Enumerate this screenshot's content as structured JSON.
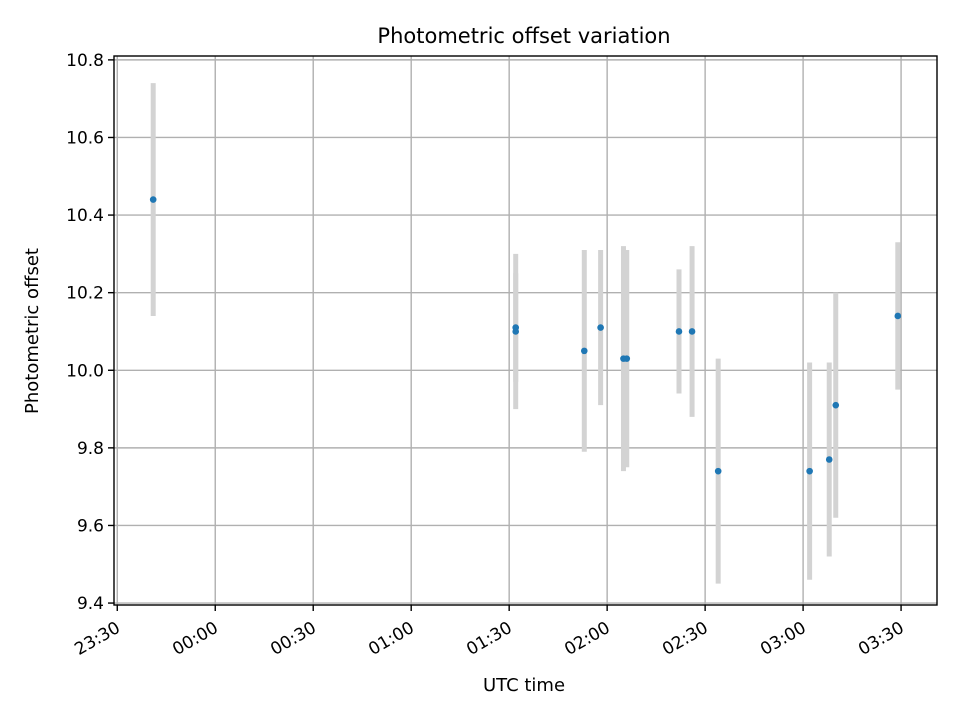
{
  "chart_data": {
    "type": "scatter",
    "title": "Photometric offset variation",
    "xlabel": "UTC time",
    "ylabel": "Photometric offset",
    "xlim": [
      "23:29",
      "03:41"
    ],
    "ylim": [
      9.395,
      10.81
    ],
    "x_ticks": [
      "23:30",
      "00:00",
      "00:30",
      "01:00",
      "01:30",
      "02:00",
      "02:30",
      "03:00",
      "03:30"
    ],
    "y_ticks": [
      9.4,
      9.6,
      9.8,
      10.0,
      10.2,
      10.4,
      10.6,
      10.8
    ],
    "y_tick_labels": [
      "9.4",
      "9.6",
      "9.8",
      "10.0",
      "10.2",
      "10.4",
      "10.6",
      "10.8"
    ],
    "grid": true,
    "colors": {
      "points": "#1f77b4",
      "errorbars": "#d3d3d3"
    },
    "series": [
      {
        "points": [
          {
            "x": "23:41",
            "y": 10.44,
            "err": 0.3
          },
          {
            "x": "01:32",
            "y": 10.11,
            "err": 0.14
          },
          {
            "x": "01:32",
            "y": 10.1,
            "err": 0.2
          },
          {
            "x": "01:53",
            "y": 10.05,
            "err": 0.26
          },
          {
            "x": "01:58",
            "y": 10.11,
            "err": 0.2
          },
          {
            "x": "02:05",
            "y": 10.03,
            "err": 0.29
          },
          {
            "x": "02:06",
            "y": 10.03,
            "err": 0.28
          },
          {
            "x": "02:22",
            "y": 10.1,
            "err": 0.16
          },
          {
            "x": "02:26",
            "y": 10.1,
            "err": 0.22
          },
          {
            "x": "02:34",
            "y": 9.74,
            "err": 0.29
          },
          {
            "x": "03:02",
            "y": 9.74,
            "err": 0.28
          },
          {
            "x": "03:08",
            "y": 9.77,
            "err": 0.25
          },
          {
            "x": "03:10",
            "y": 9.91,
            "err": 0.29
          },
          {
            "x": "03:29",
            "y": 10.14,
            "err": 0.19
          }
        ]
      }
    ]
  }
}
